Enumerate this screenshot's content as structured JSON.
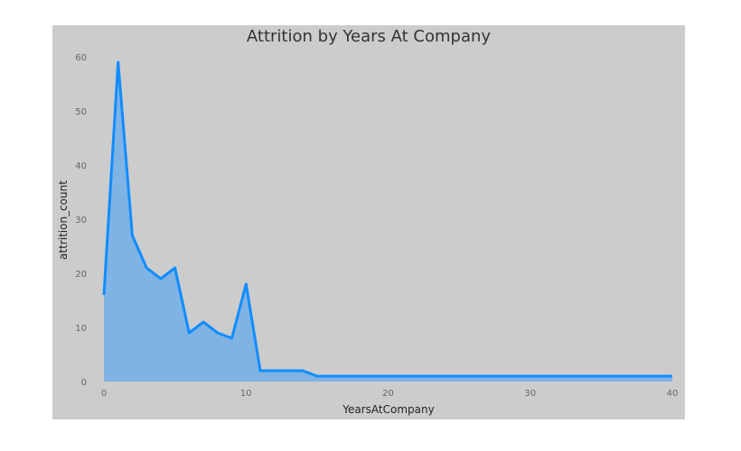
{
  "chart_data": {
    "type": "area",
    "title": "Attrition by Years At Company",
    "xlabel": "YearsAtCompany",
    "ylabel": "attrition_count",
    "xlim": [
      0,
      40
    ],
    "ylim": [
      0,
      60
    ],
    "x_ticks": [
      0,
      10,
      20,
      30,
      40
    ],
    "y_ticks": [
      0,
      10,
      20,
      30,
      40,
      50,
      60
    ],
    "grid": false,
    "series": [
      {
        "x": [
          0,
          1,
          2,
          3,
          4,
          5,
          6,
          7,
          8,
          9,
          10,
          11,
          12,
          13,
          14,
          15,
          16,
          17,
          18,
          19,
          20,
          21,
          22,
          23,
          24,
          25,
          26,
          27,
          28,
          29,
          30,
          31,
          32,
          33,
          34,
          35,
          36,
          37,
          38,
          39,
          40
        ],
        "y": [
          16,
          59,
          27,
          21,
          19,
          21,
          9,
          11,
          9,
          8,
          18,
          2,
          2,
          2,
          2,
          1,
          1,
          1,
          1,
          1,
          1,
          1,
          1,
          1,
          1,
          1,
          1,
          1,
          1,
          1,
          1,
          1,
          1,
          1,
          1,
          1,
          1,
          1,
          1,
          1,
          1
        ]
      }
    ],
    "colors": {
      "line": "#118dff",
      "fill": "#7fb3e3",
      "background": "#cccccc"
    }
  }
}
